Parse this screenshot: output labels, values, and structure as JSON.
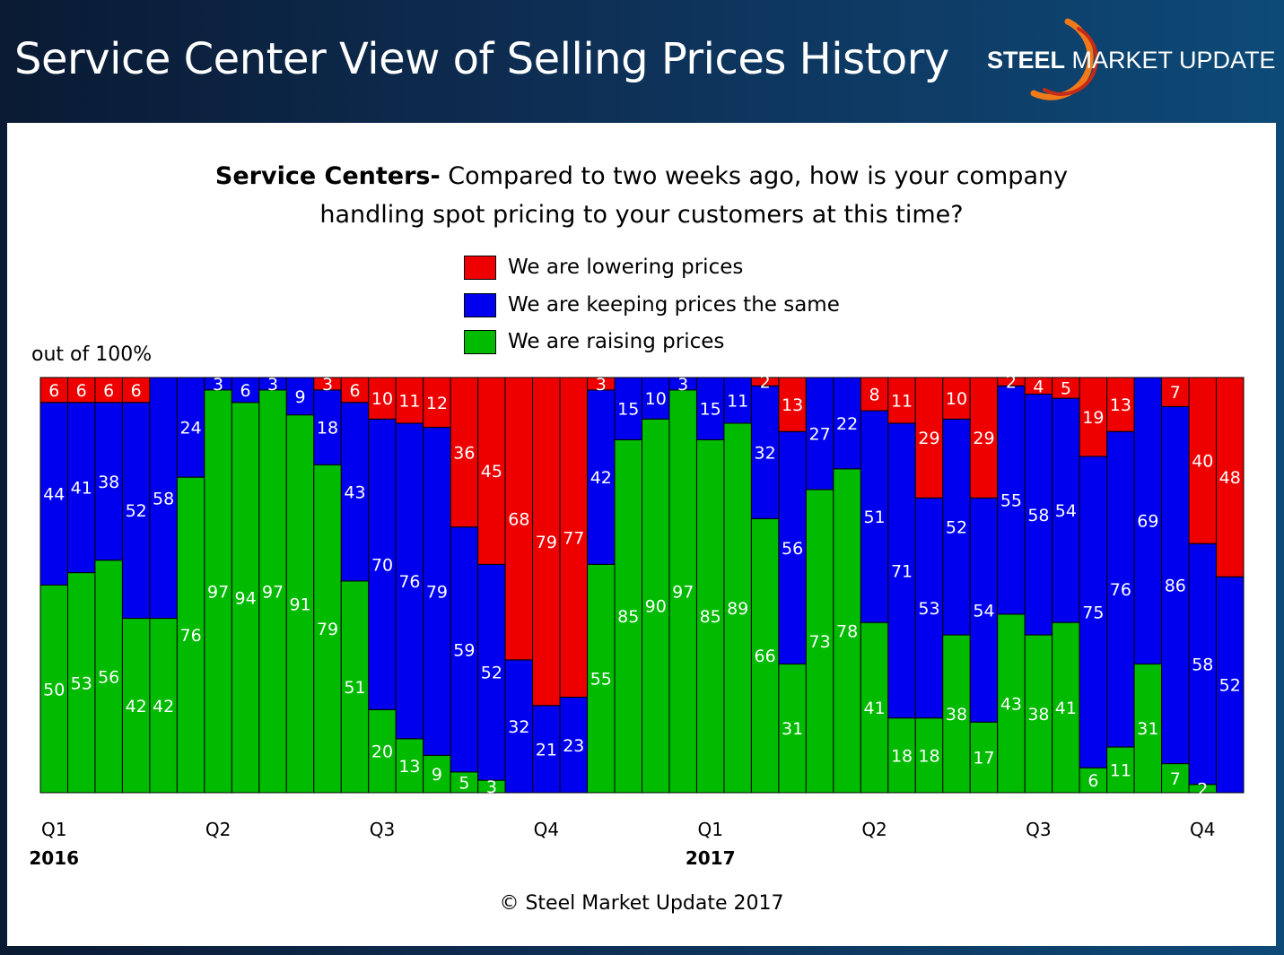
{
  "header": {
    "title": "Service Center View of Selling Prices History",
    "logo": {
      "bold": "STEEL",
      "rest": " MARKET UPDATE"
    }
  },
  "question": {
    "bold": "Service Centers-",
    "line1": " Compared to two weeks ago, how is your company",
    "line2": "handling spot pricing to your customers at this time?"
  },
  "legend": {
    "items": [
      {
        "label": "We are lowering prices",
        "color": "#ee0000"
      },
      {
        "label": "We are keeping prices the same",
        "color": "#0000ee"
      },
      {
        "label": "We are raising prices",
        "color": "#00bb00"
      }
    ]
  },
  "y_unit": "out of 100%",
  "footer": {
    "copyright": "© Steel Market Update 2017"
  },
  "chart_data": {
    "type": "bar",
    "stacked": true,
    "ylim": [
      0,
      100
    ],
    "grid": false,
    "legend_placement": "top-center",
    "x_ticks": [
      {
        "label": "Q1",
        "index": 0
      },
      {
        "label": "Q2",
        "index": 6
      },
      {
        "label": "Q3",
        "index": 12
      },
      {
        "label": "Q4",
        "index": 18
      },
      {
        "label": "Q1",
        "index": 24
      },
      {
        "label": "Q2",
        "index": 30
      },
      {
        "label": "Q3",
        "index": 36
      },
      {
        "label": "Q4",
        "index": 42
      }
    ],
    "year_labels": [
      {
        "label": "2016",
        "index": 0
      },
      {
        "label": "2017",
        "index": 24
      }
    ],
    "series": [
      {
        "name": "We are raising prices",
        "color": "#00bb00",
        "values": [
          50,
          53,
          56,
          42,
          42,
          76,
          97,
          94,
          97,
          91,
          79,
          51,
          20,
          13,
          9,
          5,
          3,
          0,
          0,
          0,
          55,
          85,
          90,
          97,
          85,
          89,
          66,
          31,
          73,
          78,
          41,
          18,
          18,
          38,
          17,
          43,
          38,
          41,
          6,
          11,
          31,
          7,
          2,
          0
        ]
      },
      {
        "name": "We are keeping prices the same",
        "color": "#0000ee",
        "values": [
          44,
          41,
          38,
          52,
          58,
          24,
          3,
          6,
          3,
          9,
          18,
          43,
          70,
          76,
          79,
          59,
          52,
          32,
          21,
          23,
          42,
          15,
          10,
          3,
          15,
          11,
          32,
          56,
          27,
          22,
          51,
          71,
          53,
          52,
          54,
          55,
          58,
          54,
          75,
          76,
          69,
          86,
          58,
          52
        ]
      },
      {
        "name": "We are lowering prices",
        "color": "#ee0000",
        "values": [
          6,
          6,
          6,
          6,
          0,
          0,
          0,
          0,
          0,
          0,
          3,
          6,
          10,
          11,
          12,
          36,
          45,
          68,
          79,
          77,
          3,
          0,
          0,
          0,
          0,
          0,
          2,
          13,
          0,
          0,
          8,
          11,
          29,
          10,
          29,
          2,
          4,
          5,
          19,
          13,
          0,
          7,
          40,
          48
        ]
      }
    ]
  }
}
